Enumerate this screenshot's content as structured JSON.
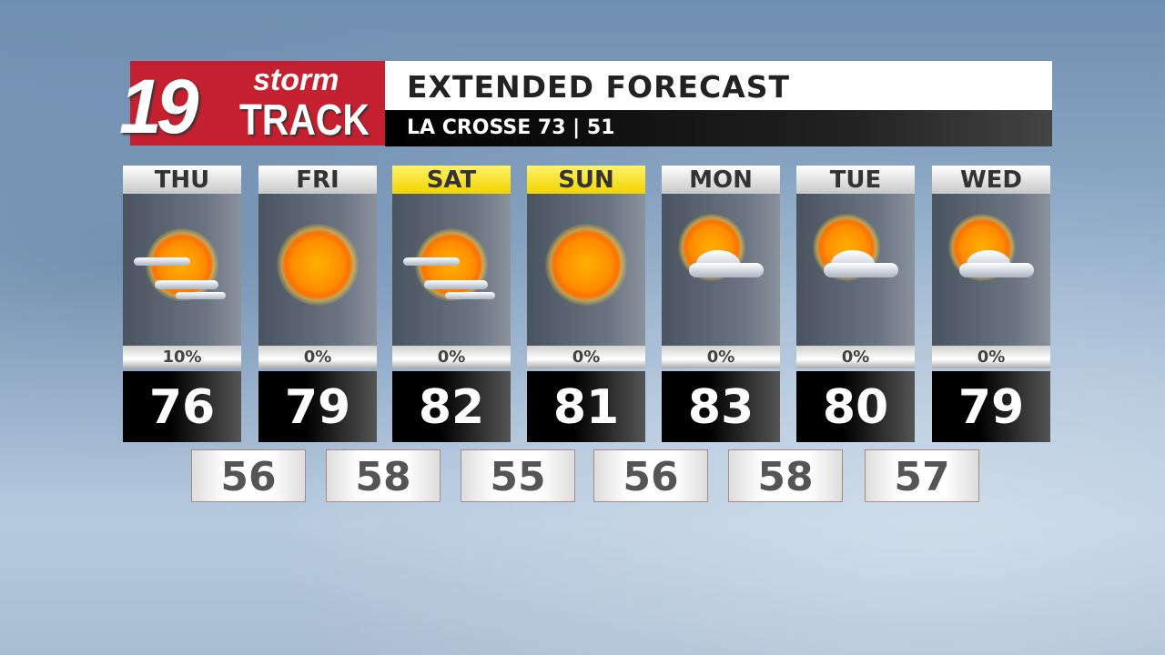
{
  "logo": {
    "number": "19",
    "word1": "storm",
    "word2": "TRACK"
  },
  "header": {
    "title": "EXTENDED FORECAST",
    "subtitle": "LA CROSSE  73 | 51"
  },
  "days": [
    {
      "name": "THU",
      "icon": "partly-sunny-icon",
      "precip": "10%",
      "high": "76",
      "highlight": false
    },
    {
      "name": "FRI",
      "icon": "sunny-icon",
      "precip": "0%",
      "high": "79",
      "highlight": false
    },
    {
      "name": "SAT",
      "icon": "partly-sunny-icon",
      "precip": "0%",
      "high": "82",
      "highlight": true
    },
    {
      "name": "SUN",
      "icon": "sunny-icon",
      "precip": "0%",
      "high": "81",
      "highlight": true
    },
    {
      "name": "MON",
      "icon": "mostly-sunny-icon",
      "precip": "0%",
      "high": "83",
      "highlight": false
    },
    {
      "name": "TUE",
      "icon": "mostly-sunny-icon",
      "precip": "0%",
      "high": "80",
      "highlight": false
    },
    {
      "name": "WED",
      "icon": "mostly-sunny-icon",
      "precip": "0%",
      "high": "79",
      "highlight": false
    }
  ],
  "lows": [
    "56",
    "58",
    "55",
    "56",
    "58",
    "57"
  ],
  "colors": {
    "brand_red": "#c4202f",
    "weekend_yellow": "#f2d300"
  }
}
